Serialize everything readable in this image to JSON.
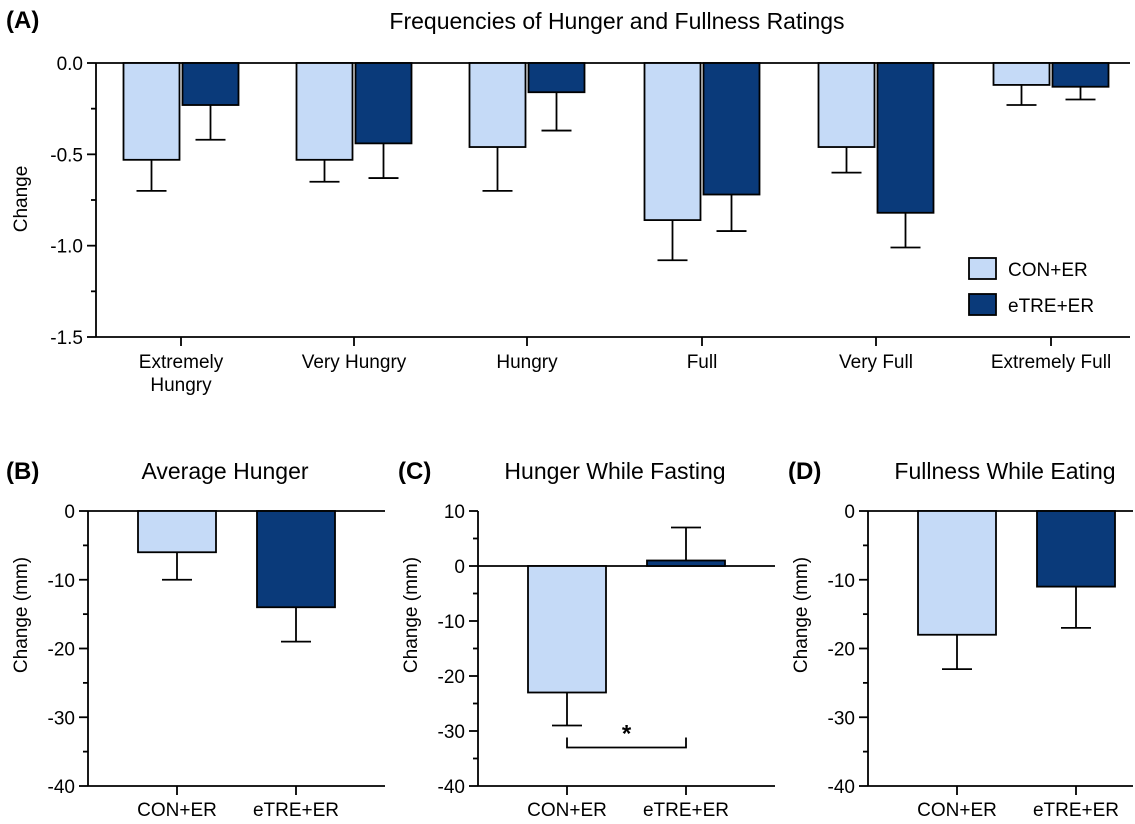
{
  "colors": {
    "con_er": "#c5daf7",
    "etre_er": "#0a3a7a"
  },
  "chart_data": [
    {
      "id": "A",
      "panel_letter": "(A)",
      "type": "bar",
      "title": "Frequencies of Hunger and Fullness Ratings",
      "xlabel": "",
      "ylabel": "Change",
      "ylim": [
        -1.5,
        0.0
      ],
      "yticks": [
        0.0,
        -0.5,
        -1.0,
        -1.5
      ],
      "ytick_labels": [
        "0.0",
        "-0.5",
        "-1.0",
        "-1.5"
      ],
      "minor_ticks": [
        -0.25,
        -0.75,
        -1.25
      ],
      "categories": [
        [
          "Extremely",
          "Hungry"
        ],
        [
          "Very Hungry"
        ],
        [
          "Hungry"
        ],
        [
          "Full"
        ],
        [
          "Very Full"
        ],
        [
          "Extremely Full"
        ]
      ],
      "series": [
        {
          "name": "CON+ER",
          "values": [
            -0.53,
            -0.53,
            -0.46,
            -0.86,
            -0.46,
            -0.12
          ],
          "err": [
            0.17,
            0.12,
            0.24,
            0.22,
            0.14,
            0.11
          ]
        },
        {
          "name": "eTRE+ER",
          "values": [
            -0.23,
            -0.44,
            -0.16,
            -0.72,
            -0.82,
            -0.13
          ],
          "err": [
            0.19,
            0.19,
            0.21,
            0.2,
            0.19,
            0.07
          ]
        }
      ],
      "legend": {
        "position": "right",
        "entries": [
          "CON+ER",
          "eTRE+ER"
        ]
      }
    },
    {
      "id": "B",
      "panel_letter": "(B)",
      "type": "bar",
      "title": "Average Hunger",
      "xlabel": "",
      "ylabel": "Change (mm)",
      "ylim": [
        -40,
        0
      ],
      "yticks": [
        0,
        -10,
        -20,
        -30,
        -40
      ],
      "ytick_labels": [
        "0",
        "-10",
        "-20",
        "-30",
        "-40"
      ],
      "minor_ticks": [
        -5,
        -15,
        -25,
        -35
      ],
      "categories": [
        "CON+ER",
        "eTRE+ER"
      ],
      "values": [
        -6,
        -14
      ],
      "err": [
        4,
        5
      ]
    },
    {
      "id": "C",
      "panel_letter": "(C)",
      "type": "bar",
      "title": "Hunger While Fasting",
      "xlabel": "",
      "ylabel": "Change (mm)",
      "ylim": [
        -40,
        10
      ],
      "yticks": [
        10,
        0,
        -10,
        -20,
        -30,
        -40
      ],
      "ytick_labels": [
        "10",
        "0",
        "-10",
        "-20",
        "-30",
        "-40"
      ],
      "minor_ticks": [
        5,
        -5,
        -15,
        -25,
        -35
      ],
      "categories": [
        "CON+ER",
        "eTRE+ER"
      ],
      "values": [
        -23,
        1
      ],
      "err": [
        6,
        6
      ],
      "annotation": {
        "text": "*",
        "bracket_y": -33
      }
    },
    {
      "id": "D",
      "panel_letter": "(D)",
      "type": "bar",
      "title": "Fullness While Eating",
      "xlabel": "",
      "ylabel": "Change (mm)",
      "ylim": [
        -40,
        0
      ],
      "yticks": [
        0,
        -10,
        -20,
        -30,
        -40
      ],
      "ytick_labels": [
        "0",
        "-10",
        "-20",
        "-30",
        "-40"
      ],
      "minor_ticks": [
        -5,
        -15,
        -25,
        -35
      ],
      "categories": [
        "CON+ER",
        "eTRE+ER"
      ],
      "values": [
        -18,
        -11
      ],
      "err": [
        5,
        6
      ]
    }
  ]
}
